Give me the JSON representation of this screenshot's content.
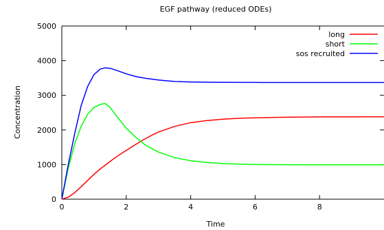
{
  "chart_data": {
    "type": "line",
    "title": "EGF pathway (reduced ODEs)",
    "xlabel": "Time",
    "ylabel": "Concentration",
    "xlim": [
      0,
      10
    ],
    "ylim": [
      0,
      5000
    ],
    "xticks": [
      0,
      2,
      4,
      6,
      8
    ],
    "yticks": [
      0,
      1000,
      2000,
      3000,
      4000,
      5000
    ],
    "xtick_labels": [
      "0",
      "2",
      "4",
      "6",
      "8"
    ],
    "ytick_labels": [
      "0",
      "1000",
      "2000",
      "3000",
      "4000",
      "5000"
    ],
    "grid": false,
    "legend_position": "top-right",
    "series": [
      {
        "name": "long",
        "color": "#ff0000",
        "x": [
          0,
          0.2,
          0.4,
          0.6,
          0.8,
          1.0,
          1.2,
          1.4,
          1.6,
          1.8,
          2.0,
          2.2,
          2.5,
          2.8,
          3.0,
          3.5,
          4.0,
          4.5,
          5.0,
          5.5,
          6.0,
          6.5,
          7.0,
          7.5,
          8.0,
          8.5,
          9.0,
          9.5,
          10.0
        ],
        "y": [
          0,
          60,
          190,
          360,
          540,
          720,
          880,
          1020,
          1160,
          1290,
          1410,
          1530,
          1700,
          1850,
          1940,
          2100,
          2210,
          2270,
          2310,
          2335,
          2350,
          2360,
          2368,
          2372,
          2375,
          2377,
          2378,
          2379,
          2380
        ]
      },
      {
        "name": "short",
        "color": "#00ff00",
        "x": [
          0,
          0.2,
          0.4,
          0.6,
          0.8,
          1.0,
          1.2,
          1.35,
          1.5,
          1.7,
          2.0,
          2.3,
          2.6,
          3.0,
          3.5,
          4.0,
          4.5,
          5.0,
          5.5,
          6.0,
          6.5,
          7.0,
          7.5,
          8.0,
          8.5,
          9.0,
          9.5,
          10.0
        ],
        "y": [
          0,
          900,
          1600,
          2100,
          2450,
          2650,
          2740,
          2760,
          2650,
          2400,
          2050,
          1780,
          1560,
          1360,
          1200,
          1110,
          1060,
          1030,
          1012,
          1003,
          998,
          996,
          995,
          994,
          994,
          994,
          994,
          994
        ]
      },
      {
        "name": "sos recruited",
        "color": "#0000ff",
        "x": [
          0,
          0.2,
          0.4,
          0.6,
          0.8,
          1.0,
          1.2,
          1.35,
          1.5,
          1.7,
          2.0,
          2.3,
          2.6,
          3.0,
          3.5,
          4.0,
          4.5,
          5.0,
          5.5,
          6.0,
          6.5,
          7.0,
          7.5,
          8.0,
          8.5,
          9.0,
          9.5,
          10.0
        ],
        "y": [
          0,
          1000,
          1900,
          2700,
          3250,
          3600,
          3760,
          3790,
          3780,
          3720,
          3620,
          3540,
          3490,
          3440,
          3400,
          3385,
          3378,
          3374,
          3372,
          3371,
          3370,
          3370,
          3370,
          3370,
          3370,
          3370,
          3370,
          3370
        ]
      }
    ]
  }
}
